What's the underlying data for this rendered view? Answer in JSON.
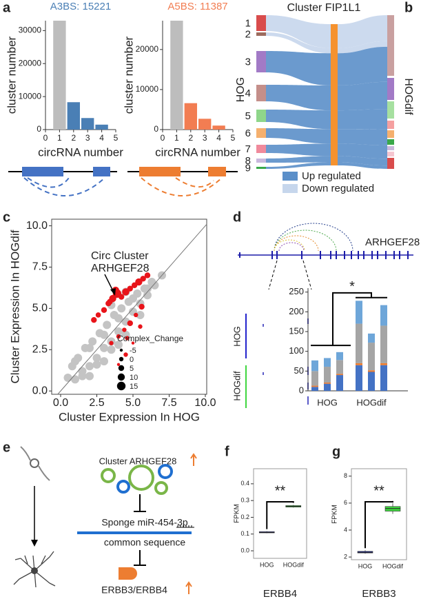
{
  "panel_labels": [
    "a",
    "b",
    "c",
    "d",
    "e",
    "f",
    "g"
  ],
  "chart_data": [
    {
      "type": "bar",
      "title": "A3BS: 15221",
      "title_color": "#4a7fb5",
      "x": [
        1,
        2,
        3,
        4
      ],
      "values": [
        33000,
        8300,
        3500,
        1500
      ],
      "colors": [
        "#bdbdbd",
        "#4a7fb5",
        "#4a7fb5",
        "#4a7fb5"
      ],
      "xlim": [
        0,
        5
      ],
      "xticks": [
        0,
        1,
        2,
        3,
        4,
        5
      ],
      "ylim": [
        0,
        33000
      ],
      "yticks": [
        0,
        10000,
        20000,
        30000
      ],
      "xlabel": "circRNA number",
      "ylabel": "cluster number"
    },
    {
      "type": "bar",
      "title": "A5BS: 11387",
      "title_color": "#f27d52",
      "x": [
        1,
        2,
        3,
        4
      ],
      "values": [
        27200,
        6600,
        2700,
        1000
      ],
      "colors": [
        "#bdbdbd",
        "#f27d52",
        "#f27d52",
        "#f27d52"
      ],
      "xlim": [
        0,
        5
      ],
      "xticks": [
        0,
        1,
        2,
        3,
        4,
        5
      ],
      "ylim": [
        0,
        27200
      ],
      "yticks": [
        0,
        10000,
        20000
      ],
      "xlabel": "circRNA number",
      "ylabel": "cluster number"
    },
    {
      "type": "scatter",
      "xlabel": "Cluster Expression In HOG",
      "ylabel": "Cluster Expression In HOGdif",
      "xlim": [
        -0.6,
        10.1
      ],
      "ylim": [
        -0.2,
        10.4
      ],
      "xticks": [
        {
          "value": 0,
          "label": "0.0"
        },
        2.5,
        {
          "value": 5,
          "label": "5.0"
        },
        7.5,
        {
          "value": 10,
          "label": "10.0"
        }
      ],
      "yticks": [
        {
          "value": 0,
          "label": "0.0"
        },
        2.5,
        {
          "value": 5,
          "label": "5.0"
        },
        7.5,
        {
          "value": 10,
          "label": "10.0"
        }
      ],
      "diagonal": true,
      "series": [
        {
          "color": "#c4c4c4",
          "x": [
            0.5,
            0.8,
            1.0,
            1.2,
            1.5,
            1.7,
            2.0,
            2.2,
            2.5,
            2.7,
            3.0,
            3.2,
            3.5,
            3.7,
            4.0,
            4.2,
            4.5,
            4.7,
            5.0,
            5.3,
            5.5,
            5.8,
            6.0,
            6.3,
            6.5,
            7.0,
            1.0,
            1.5,
            2.0,
            2.5,
            3.0,
            3.5,
            4.0,
            4.5,
            5.0,
            5.5,
            6.0,
            2.0,
            3.0,
            4.0,
            3.5,
            4.5
          ],
          "values": [
            0.8,
            1.5,
            0.7,
            2.0,
            1.2,
            2.6,
            1.5,
            3.0,
            2.0,
            3.5,
            2.6,
            4.0,
            3.0,
            4.6,
            3.6,
            5.0,
            4.2,
            5.4,
            4.8,
            5.9,
            5.3,
            6.2,
            5.8,
            6.6,
            6.4,
            7.0,
            1.8,
            0.9,
            2.6,
            1.6,
            3.4,
            2.5,
            4.4,
            3.4,
            5.6,
            4.6,
            6.2,
            0.9,
            1.8,
            2.8,
            5.2,
            6.0
          ]
        },
        {
          "color": "#e8141a",
          "x": [
            2.3,
            2.6,
            3.0,
            3.3,
            3.6,
            3.9,
            4.2,
            4.5,
            4.8,
            5.1,
            5.4,
            5.7,
            6.0,
            3.5,
            4.0,
            4.4,
            4.8,
            5.2,
            5.6,
            4.0,
            4.5,
            5.0,
            5.5,
            3.8,
            3.4,
            4.6
          ],
          "values": [
            4.3,
            4.6,
            4.9,
            5.3,
            5.6,
            5.9,
            5.7,
            6.0,
            6.2,
            6.4,
            6.6,
            6.8,
            7.0,
            2.9,
            3.3,
            3.7,
            4.1,
            4.6,
            5.1,
            1.6,
            2.2,
            2.9,
            3.9,
            6.1,
            5.4,
            3.2
          ],
          "sizes": [
            5,
            3,
            5,
            5,
            10,
            15,
            5,
            10,
            5,
            5,
            10,
            5,
            5,
            0,
            0,
            0,
            5,
            0,
            5,
            -5,
            0,
            -5,
            0,
            10,
            5,
            0
          ]
        }
      ],
      "size_legend_title": "Complex_Change",
      "size_legend": [
        -5,
        0,
        5,
        10,
        15
      ],
      "annotation": [
        "Circ Cluster",
        "ARHGEF28"
      ]
    },
    {
      "type": "stacked_bar",
      "categories": [
        null,
        null,
        null,
        null,
        null,
        null
      ],
      "group_labels": [
        "HOG",
        "HOGdif"
      ],
      "series": [
        {
          "color": "#4472c4",
          "values": [
            10,
            18,
            40,
            65,
            48,
            65
          ]
        },
        {
          "color": "#ed7d31",
          "values": [
            3,
            3,
            3,
            5,
            4,
            5
          ]
        },
        {
          "color": "#a5a5a5",
          "values": [
            37,
            40,
            35,
            100,
            70,
            95
          ]
        },
        {
          "color": "#6ea6d9",
          "values": [
            27,
            22,
            20,
            58,
            23,
            52
          ]
        }
      ],
      "ylim": [
        0,
        260
      ],
      "yticks": [
        0,
        50,
        100,
        150,
        200,
        250
      ],
      "significance": "*"
    },
    {
      "type": "box",
      "categories": [
        "HOG",
        "HOGdif"
      ],
      "colors": [
        "#1f2a9e",
        "#3fd63f"
      ],
      "ylabel": "FPKM",
      "ylim": [
        -0.045,
        0.49
      ],
      "yticks": [
        {
          "value": 0,
          "label": "0.0"
        },
        0.1,
        0.2,
        0.3,
        0.4
      ],
      "boxes": [
        {
          "min": 0.105,
          "q1": 0.107,
          "median": 0.11,
          "q3": 0.114,
          "max": 0.117
        },
        {
          "min": 0.258,
          "q1": 0.261,
          "median": 0.265,
          "q3": 0.27,
          "max": 0.274
        }
      ],
      "significance": "**",
      "caption": "ERBB4"
    },
    {
      "type": "box",
      "categories": [
        "HOG",
        "HOGdif"
      ],
      "colors": [
        "#1f2a9e",
        "#3fd63f"
      ],
      "ylabel": "FPKM",
      "ylim": [
        1.8,
        8.55
      ],
      "yticks": [
        2,
        4,
        6,
        8
      ],
      "boxes": [
        {
          "min": 2.25,
          "q1": 2.3,
          "median": 2.35,
          "q3": 2.42,
          "max": 2.5
        },
        {
          "min": 5.2,
          "q1": 5.4,
          "median": 5.6,
          "q3": 5.75,
          "max": 6.0
        }
      ],
      "significance": "**",
      "caption": "ERBB3"
    }
  ],
  "sankey_b": {
    "title": "Cluster FIP1L1",
    "left_labels": [
      "1",
      "2",
      "3",
      "4",
      "5",
      "6",
      "7",
      "8",
      "9"
    ],
    "left_axis": "HOG",
    "right_axis": "HOGdif",
    "node_colors": [
      "#d94c4c",
      "#9c6b5e",
      "#a27ac6",
      "#c48f8a",
      "#8fd68a",
      "#f5b06e",
      "#f08a9c",
      "#c9b8dd",
      "#3aa84a"
    ],
    "middle_color": "#f5922f",
    "right_colors": [
      "#c9a0a0",
      "#a27ac6",
      "#a6e0a0",
      "#f5a0a0",
      "#f5b06e",
      "#3aa84a",
      "#c9b8dd",
      "#f5c6d0",
      "#d94c4c"
    ],
    "legend": [
      {
        "label": "Up regulated",
        "color": "#5b8fc9"
      },
      {
        "label": "Down regulated",
        "color": "#c6d6ec"
      }
    ]
  },
  "diagram_d": {
    "gene": "ARHGEF28",
    "tracks": [
      "HOG",
      "HOGdif"
    ]
  },
  "diagram_e": {
    "circ_label": "Cluster ARHGEF28",
    "sponge": "Sponge miR-454-3p",
    "common": "common sequence",
    "target": "ERBB3/ERBB4"
  }
}
